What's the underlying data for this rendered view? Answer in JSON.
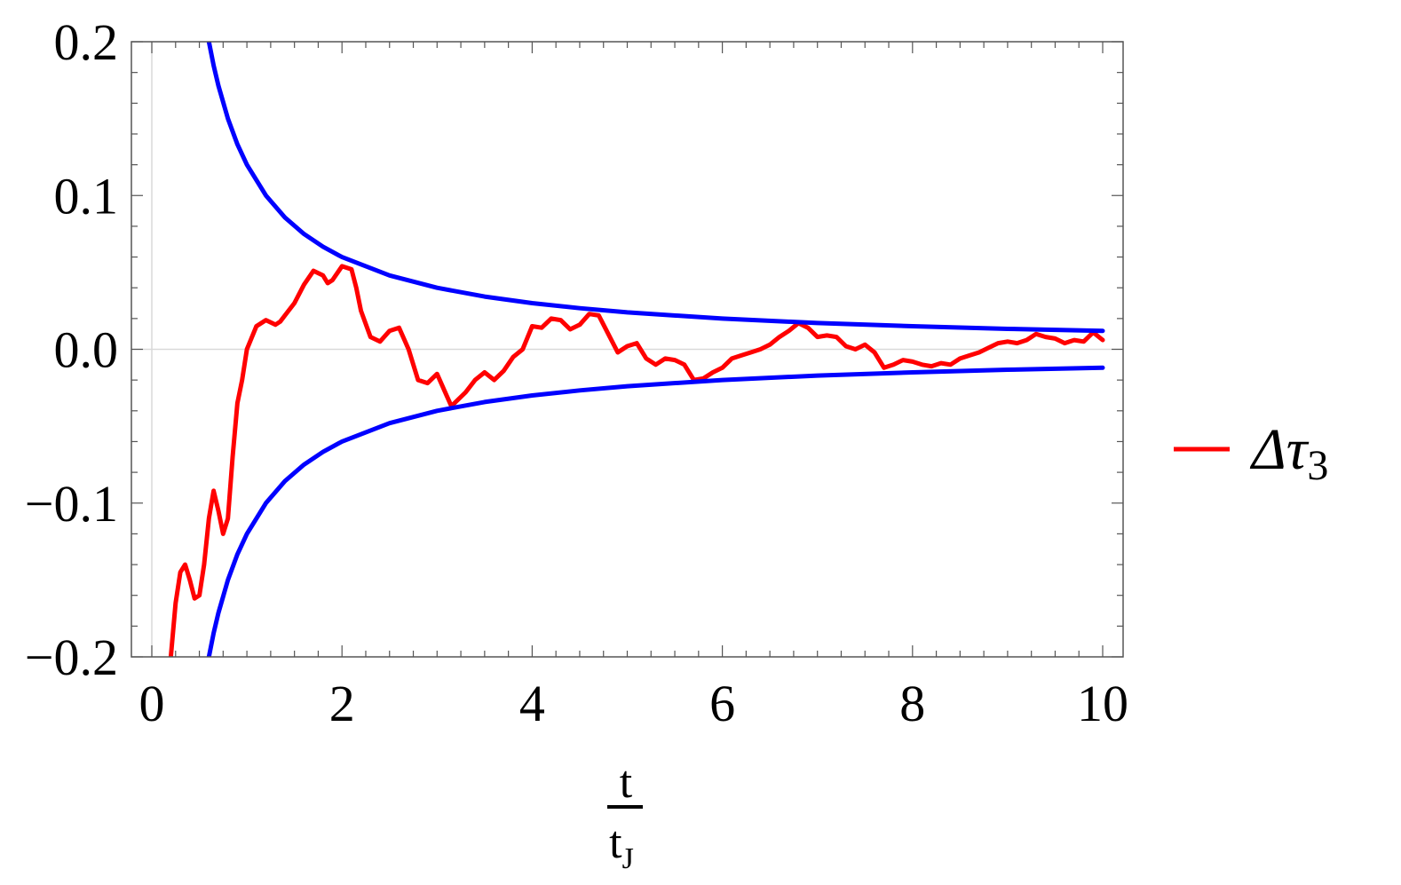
{
  "chart_data": {
    "type": "line",
    "title": "",
    "xlabel": "t/tJ",
    "xlabel_parts": {
      "numerator": "t",
      "denominator": "t",
      "denominator_sub": "J"
    },
    "ylabel": "",
    "xlim": [
      0,
      10
    ],
    "ylim": [
      -0.2,
      0.2
    ],
    "x_ticks": [
      0,
      2,
      4,
      6,
      8,
      10
    ],
    "x_tick_labels": [
      "0",
      "2",
      "4",
      "6",
      "8",
      "10"
    ],
    "y_ticks": [
      -0.2,
      -0.1,
      0.0,
      0.1,
      0.2
    ],
    "y_tick_labels": [
      "−0.2",
      "−0.1",
      "0.0",
      "0.1",
      "0.2"
    ],
    "grid": false,
    "zero_lines": true,
    "legend": {
      "position": "right",
      "entries": [
        {
          "label": "Δτ",
          "subscript": "3",
          "color": "#ff0000"
        }
      ]
    },
    "series": [
      {
        "color": "#ff0000",
        "x": [
          0.2,
          0.25,
          0.3,
          0.35,
          0.4,
          0.45,
          0.5,
          0.55,
          0.6,
          0.65,
          0.7,
          0.75,
          0.8,
          0.85,
          0.9,
          0.95,
          1.0,
          1.1,
          1.2,
          1.3,
          1.35,
          1.4,
          1.5,
          1.6,
          1.7,
          1.8,
          1.85,
          1.9,
          2.0,
          2.1,
          2.15,
          2.2,
          2.3,
          2.4,
          2.5,
          2.6,
          2.7,
          2.8,
          2.9,
          3.0,
          3.1,
          3.15,
          3.2,
          3.3,
          3.4,
          3.5,
          3.6,
          3.7,
          3.8,
          3.9,
          4.0,
          4.1,
          4.2,
          4.3,
          4.4,
          4.5,
          4.6,
          4.7,
          4.8,
          4.9,
          5.0,
          5.1,
          5.2,
          5.3,
          5.4,
          5.5,
          5.6,
          5.7,
          5.8,
          5.9,
          6.0,
          6.1,
          6.2,
          6.3,
          6.4,
          6.5,
          6.6,
          6.7,
          6.8,
          6.9,
          7.0,
          7.1,
          7.2,
          7.3,
          7.4,
          7.5,
          7.6,
          7.7,
          7.8,
          7.9,
          8.0,
          8.1,
          8.2,
          8.3,
          8.4,
          8.5,
          8.6,
          8.7,
          8.8,
          8.9,
          9.0,
          9.1,
          9.2,
          9.3,
          9.4,
          9.5,
          9.6,
          9.7,
          9.8,
          9.9,
          10.0
        ],
        "y": [
          -0.2,
          -0.165,
          -0.145,
          -0.14,
          -0.15,
          -0.162,
          -0.16,
          -0.14,
          -0.11,
          -0.092,
          -0.105,
          -0.12,
          -0.11,
          -0.07,
          -0.035,
          -0.02,
          0.0,
          0.015,
          0.019,
          0.016,
          0.018,
          0.022,
          0.03,
          0.042,
          0.051,
          0.048,
          0.043,
          0.045,
          0.054,
          0.052,
          0.04,
          0.025,
          0.008,
          0.005,
          0.012,
          0.014,
          0.0,
          -0.02,
          -0.022,
          -0.016,
          -0.03,
          -0.037,
          -0.034,
          -0.028,
          -0.02,
          -0.015,
          -0.02,
          -0.014,
          -0.005,
          0.0,
          0.015,
          0.014,
          0.02,
          0.019,
          0.013,
          0.016,
          0.023,
          0.022,
          0.01,
          -0.002,
          0.002,
          0.004,
          -0.006,
          -0.01,
          -0.006,
          -0.007,
          -0.01,
          -0.02,
          -0.019,
          -0.015,
          -0.012,
          -0.006,
          -0.004,
          -0.002,
          0.0,
          0.003,
          0.008,
          0.012,
          0.017,
          0.014,
          0.008,
          0.009,
          0.008,
          0.002,
          0.0,
          0.003,
          -0.002,
          -0.012,
          -0.01,
          -0.007,
          -0.008,
          -0.01,
          -0.011,
          -0.009,
          -0.01,
          -0.006,
          -0.004,
          -0.002,
          0.001,
          0.004,
          0.005,
          0.004,
          0.006,
          0.01,
          0.008,
          0.007,
          0.004,
          0.006,
          0.005,
          0.011,
          0.006
        ]
      },
      {
        "color": "#0000ff",
        "formula": "0.12/x",
        "x": [
          0.6,
          0.65,
          0.7,
          0.8,
          0.9,
          1.0,
          1.2,
          1.4,
          1.6,
          1.8,
          2.0,
          2.5,
          3.0,
          3.5,
          4.0,
          4.5,
          5.0,
          6.0,
          7.0,
          8.0,
          9.0,
          10.0
        ],
        "y": [
          0.2,
          0.1846,
          0.1714,
          0.15,
          0.1333,
          0.12,
          0.1,
          0.0857,
          0.075,
          0.0667,
          0.06,
          0.048,
          0.04,
          0.0343,
          0.03,
          0.0267,
          0.024,
          0.02,
          0.0171,
          0.015,
          0.0133,
          0.012
        ]
      },
      {
        "color": "#0000ff",
        "formula": "-0.12/x",
        "x": [
          0.6,
          0.65,
          0.7,
          0.8,
          0.9,
          1.0,
          1.2,
          1.4,
          1.6,
          1.8,
          2.0,
          2.5,
          3.0,
          3.5,
          4.0,
          4.5,
          5.0,
          6.0,
          7.0,
          8.0,
          9.0,
          10.0
        ],
        "y": [
          -0.2,
          -0.1846,
          -0.1714,
          -0.15,
          -0.1333,
          -0.12,
          -0.1,
          -0.0857,
          -0.075,
          -0.0667,
          -0.06,
          -0.048,
          -0.04,
          -0.0343,
          -0.03,
          -0.0267,
          -0.024,
          -0.02,
          -0.0171,
          -0.015,
          -0.0133,
          -0.012
        ]
      }
    ]
  }
}
